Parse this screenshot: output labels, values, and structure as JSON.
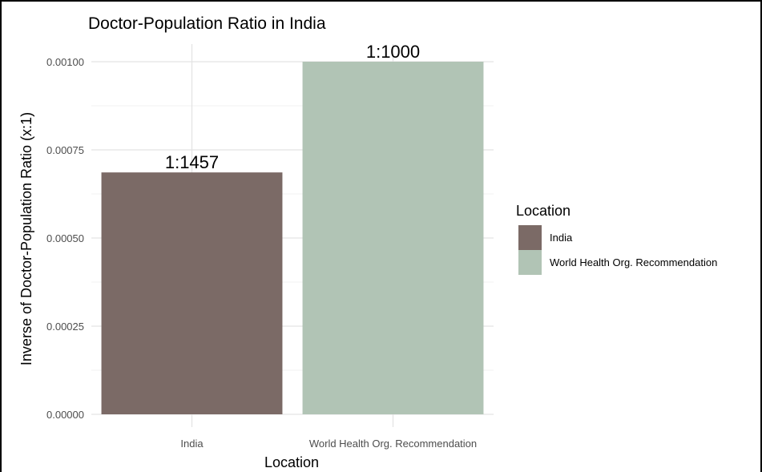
{
  "chart_data": {
    "type": "bar",
    "title": "Doctor-Population Ratio in India",
    "xlabel": "Location",
    "ylabel": "Inverse of Doctor-Population Ratio (x:1)",
    "ylim": [
      0,
      0.001
    ],
    "yticks": [
      "0.00000",
      "0.00025",
      "0.00050",
      "0.00075",
      "0.00100"
    ],
    "ytick_values": [
      0,
      0.00025,
      0.0005,
      0.00075,
      0.001
    ],
    "categories": [
      "India",
      "World Health Org. Recommendation"
    ],
    "values": [
      0.000686,
      0.001
    ],
    "data_labels": [
      "1:1457",
      "1:1000"
    ],
    "colors": [
      "#7b6a66",
      "#b1c4b5"
    ],
    "grid": true,
    "legend": {
      "title": "Location",
      "position": "right",
      "entries": [
        "India",
        "World Health Org. Recommendation"
      ]
    }
  }
}
